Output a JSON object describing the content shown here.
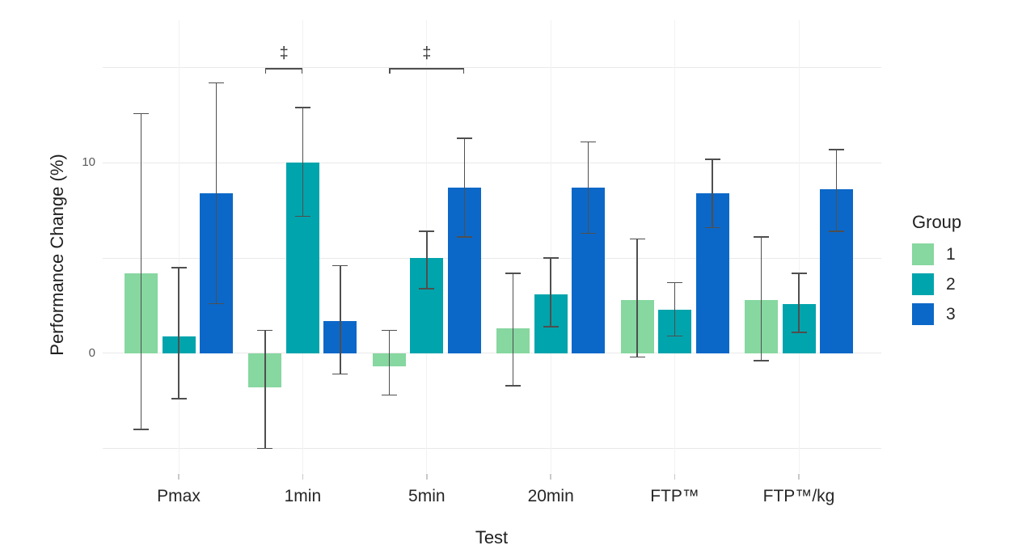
{
  "chart_data": {
    "type": "bar",
    "title": "",
    "xlabel": "Test",
    "ylabel": "Performance Change (%)",
    "categories": [
      "Pmax",
      "1min",
      "5min",
      "20min",
      "FTP™",
      "FTP™/kg"
    ],
    "series": [
      {
        "name": "1",
        "color": "#86d7a0",
        "values": [
          4.2,
          -1.8,
          -0.7,
          1.3,
          2.8,
          2.8
        ],
        "error_high": [
          12.6,
          1.2,
          1.2,
          4.2,
          6.0,
          6.1
        ],
        "error_low": [
          -4.0,
          -5.0,
          -2.2,
          -1.7,
          -0.2,
          -0.4
        ]
      },
      {
        "name": "2",
        "color": "#00a4ac",
        "values": [
          0.9,
          10.0,
          5.0,
          3.1,
          2.3,
          2.6
        ],
        "error_high": [
          4.5,
          12.9,
          6.4,
          5.0,
          3.7,
          4.2
        ],
        "error_low": [
          -2.4,
          7.2,
          3.4,
          1.4,
          0.9,
          1.1
        ]
      },
      {
        "name": "3",
        "color": "#0c68c8",
        "values": [
          8.4,
          1.7,
          8.7,
          8.7,
          8.4,
          8.6
        ],
        "error_high": [
          14.2,
          4.6,
          11.3,
          11.1,
          10.2,
          10.7
        ],
        "error_low": [
          2.6,
          -1.1,
          6.1,
          6.3,
          6.6,
          6.4
        ]
      }
    ],
    "legend": {
      "title": "Group",
      "position": "right",
      "labels": [
        "1",
        "2",
        "3"
      ]
    },
    "ylim": [
      -6.3,
      17.5
    ],
    "gridline_values": [
      -5,
      0,
      5,
      10,
      15
    ],
    "y_tick_labels": [
      0,
      10
    ],
    "grid": "on",
    "annotations": [
      {
        "category_index": 1,
        "from_series": 0,
        "to_series": 1,
        "label": "‡"
      },
      {
        "category_index": 2,
        "from_series": 0,
        "to_series": 2,
        "label": "‡"
      }
    ],
    "error_bar_color": "#4f4f4f"
  }
}
